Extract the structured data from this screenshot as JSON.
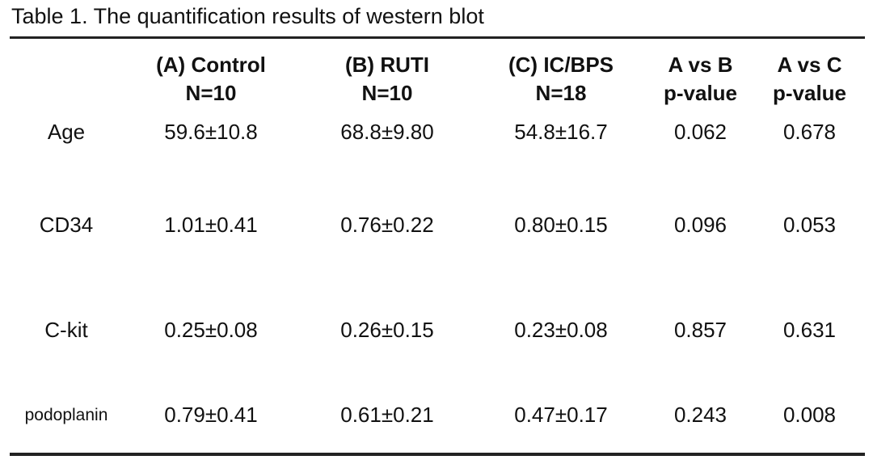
{
  "caption": "Table 1. The quantification results of western blot",
  "table": {
    "headers": [
      {
        "line1": "",
        "line2": ""
      },
      {
        "line1": "(A) Control",
        "line2": "N=10"
      },
      {
        "line1": "(B) RUTI",
        "line2": "N=10"
      },
      {
        "line1": "(C) IC/BPS",
        "line2": "N=18"
      },
      {
        "line1": "A vs B",
        "line2": "p-value"
      },
      {
        "line1": "A vs C",
        "line2": "p-value"
      }
    ],
    "rows": [
      [
        "Age",
        "59.6±10.8",
        "68.8±9.80",
        "54.8±16.7",
        "0.062",
        "0.678"
      ],
      [
        "CD34",
        "1.01±0.41",
        "0.76±0.22",
        "0.80±0.15",
        "0.096",
        "0.053"
      ],
      [
        "C-kit",
        "0.25±0.08",
        "0.26±0.15",
        "0.23±0.08",
        "0.857",
        "0.631"
      ],
      [
        "podoplanin",
        "0.79±0.41",
        "0.61±0.21",
        "0.47±0.17",
        "0.243",
        "0.008"
      ]
    ]
  }
}
